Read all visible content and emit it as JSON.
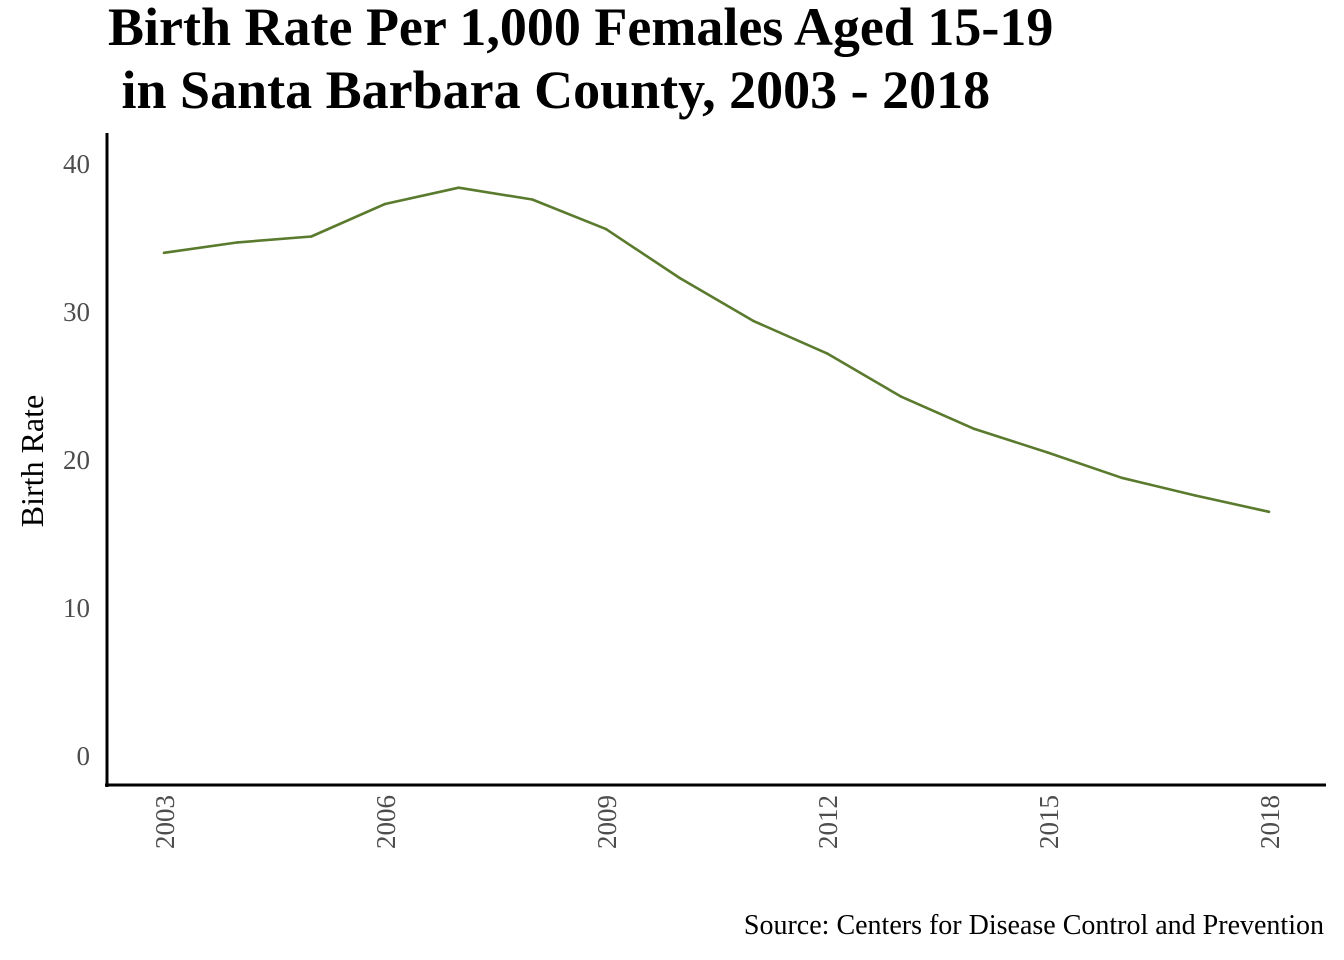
{
  "chart_data": {
    "type": "line",
    "title": [
      "Birth Rate Per 1,000 Females Aged 15-19",
      " in Santa Barbara County, 2003 - 2018"
    ],
    "xlabel": "",
    "ylabel": "Birth Rate",
    "caption": "Source: Centers for Disease Control and Prevention",
    "xlim": [
      2003,
      2018
    ],
    "ylim": [
      0,
      40
    ],
    "x_ticks": [
      2003,
      2006,
      2009,
      2012,
      2015,
      2018
    ],
    "y_ticks": [
      0,
      10,
      20,
      30,
      40
    ],
    "grid": false,
    "line_color": "#5a7a2e",
    "x": [
      2003,
      2004,
      2005,
      2006,
      2007,
      2008,
      2009,
      2010,
      2011,
      2012,
      2013,
      2014,
      2015,
      2016,
      2017,
      2018
    ],
    "values": [
      34.0,
      34.7,
      35.1,
      37.3,
      38.4,
      37.6,
      35.6,
      32.3,
      29.4,
      27.2,
      24.3,
      22.1,
      20.5,
      18.8,
      17.6,
      16.5
    ]
  }
}
